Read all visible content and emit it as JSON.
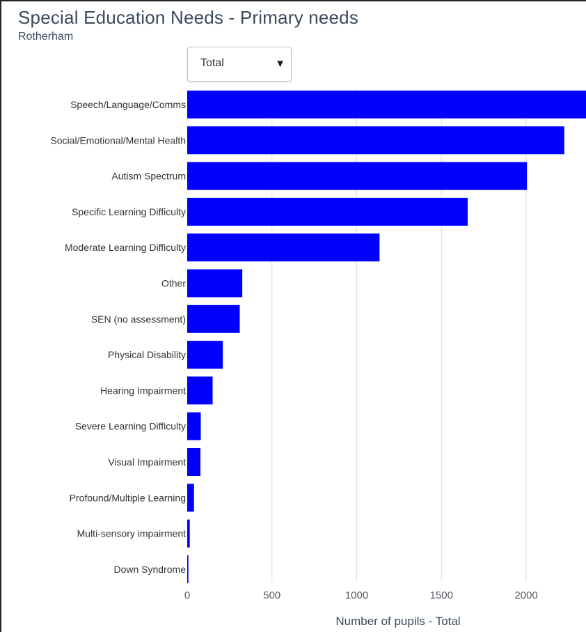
{
  "page": {
    "title": "Special Education Needs - Primary needs",
    "subtitle": "Rotherham",
    "dropdown": {
      "selected": "Total",
      "caret": "▼"
    }
  },
  "colors": {
    "bar": "#0000ff",
    "grid": "#dddddd",
    "axis_text": "#555b62"
  },
  "chart_data": {
    "type": "bar",
    "orientation": "horizontal",
    "title": "Special Education Needs - Primary needs",
    "subtitle": "Rotherham",
    "xlabel": "Number of pupils - Total",
    "ylabel": "",
    "xlim": [
      0,
      2350
    ],
    "xticks": [
      0,
      500,
      1000,
      1500,
      2000
    ],
    "grid": true,
    "categories": [
      "Speech/Language/Comms",
      "Social/Emotional/Mental Health",
      "Autism Spectrum",
      "Specific Learning Difficulty",
      "Moderate Learning Difficulty",
      "Other",
      "SEN (no assessment)",
      "Physical Disability",
      "Hearing Impairment",
      "Severe Learning Difficulty",
      "Visual Impairment",
      "Profound/Multiple Learning",
      "Multi-sensory impairment",
      "Down Syndrome"
    ],
    "values": [
      2380,
      2225,
      2005,
      1655,
      1135,
      325,
      310,
      210,
      150,
      80,
      78,
      40,
      15,
      7
    ]
  }
}
